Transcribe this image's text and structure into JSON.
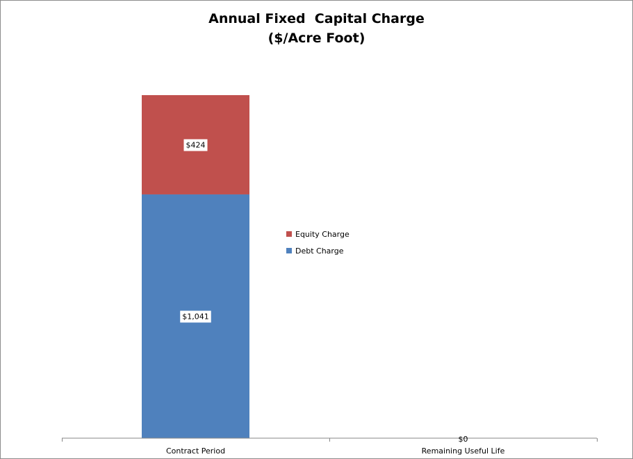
{
  "chart_data": {
    "type": "bar",
    "stacked": true,
    "title": "Annual Fixed  Capital Charge",
    "subtitle": "($/Acre Foot)",
    "categories": [
      "Contract Period",
      "Remaining Useful Life"
    ],
    "series": [
      {
        "name": "Debt Charge",
        "values": [
          1041,
          0
        ],
        "color": "#4F81BD"
      },
      {
        "name": "Equity Charge",
        "values": [
          424,
          0
        ],
        "color": "#C0504D"
      }
    ],
    "data_labels": [
      {
        "category": "Contract Period",
        "series": "Debt Charge",
        "text": "$1,041"
      },
      {
        "category": "Contract Period",
        "series": "Equity Charge",
        "text": "$424"
      },
      {
        "category": "Remaining Useful Life",
        "series": "Debt Charge",
        "text": "$0"
      }
    ],
    "legend": [
      "Equity Charge",
      "Debt Charge"
    ],
    "legend_position": "right",
    "ylim": [
      0,
      1465
    ],
    "grid": false
  }
}
